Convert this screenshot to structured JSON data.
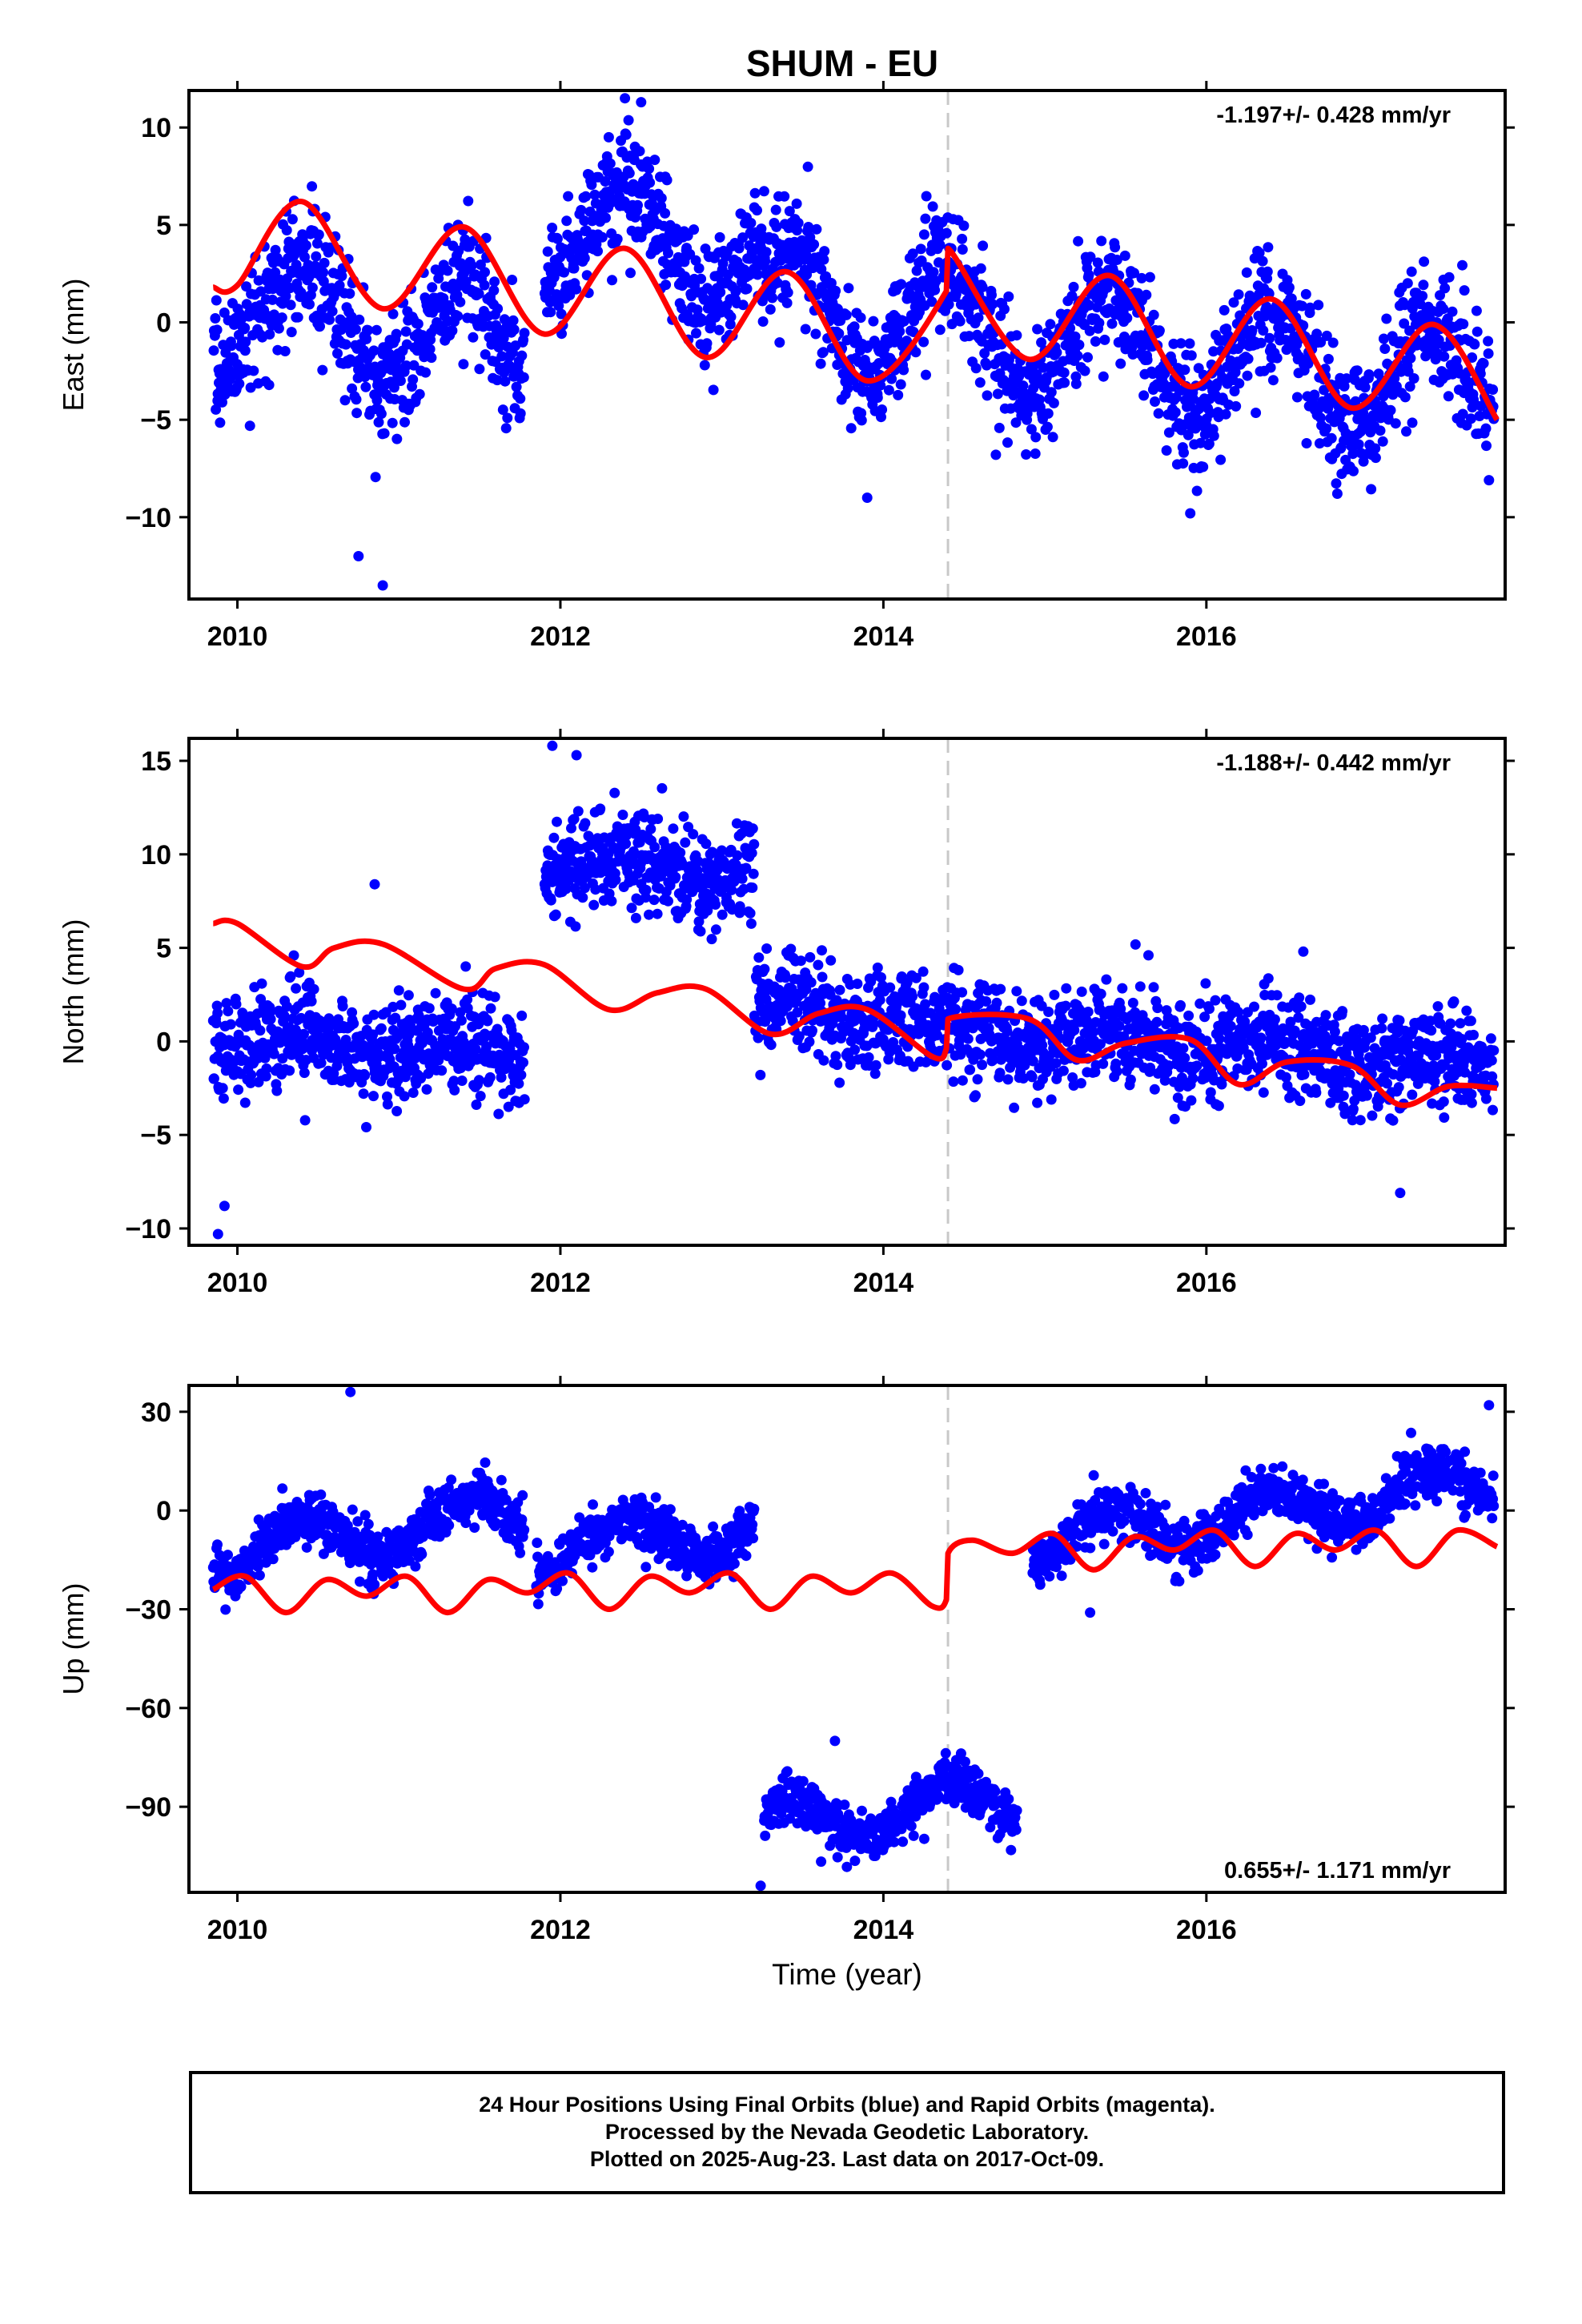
{
  "title": "SHUM - EU",
  "footer": {
    "line1": "24 Hour Positions Using Final Orbits (blue) and Rapid Orbits (magenta).",
    "line2": "Processed by the Nevada Geodetic Laboratory.",
    "line3": "Plotted on 2025-Aug-23. Last data on 2017-Oct-09."
  },
  "colors": {
    "data": "#0000ff",
    "model": "#ff0000",
    "offset_line": "#c8c8c8",
    "frame": "#000000"
  },
  "chart_data": [
    {
      "type": "scatter",
      "component": "east",
      "ylabel": "East (mm)",
      "xlabel": "",
      "xlim": [
        2009.7,
        2017.85
      ],
      "ylim": [
        -14.2,
        11.9
      ],
      "xticks": [
        2010,
        2012,
        2014,
        2016
      ],
      "yticks": [
        -10,
        -5,
        0,
        5,
        10
      ],
      "rate_label": "-1.197+/- 0.428 mm/yr",
      "rate_position": "top-right",
      "offset_epoch": 2014.4,
      "gaps": [
        [
          2011.78,
          2011.9
        ]
      ],
      "trend": {
        "slope": -0.85,
        "at_2014": 0
      },
      "segment_shifts": [
        [
          2009.85,
          2011.8,
          -3.0
        ],
        [
          2011.9,
          2013.25,
          3.0
        ],
        [
          2013.25,
          2014.4,
          0.5
        ],
        [
          2014.4,
          2017.8,
          0.0
        ]
      ],
      "annual_amp": 2.8,
      "noise_sd": 1.6,
      "n_points": 2400,
      "model_keypoints": [
        [
          2009.85,
          1.8
        ],
        [
          2010.0,
          1.9
        ],
        [
          2010.4,
          6.2
        ],
        [
          2010.9,
          0.7
        ],
        [
          2011.4,
          4.9
        ],
        [
          2011.9,
          -0.6
        ],
        [
          2012.4,
          3.8
        ],
        [
          2012.9,
          -1.8
        ],
        [
          2013.4,
          2.6
        ],
        [
          2013.9,
          -3.0
        ],
        [
          2014.39,
          1.6
        ],
        [
          2014.4,
          3.8
        ],
        [
          2014.9,
          -1.9
        ],
        [
          2015.4,
          2.4
        ],
        [
          2015.9,
          -3.3
        ],
        [
          2016.4,
          1.2
        ],
        [
          2016.9,
          -4.4
        ],
        [
          2017.4,
          -0.1
        ],
        [
          2017.8,
          -5.0
        ]
      ],
      "extreme_points": [
        [
          2010.75,
          -12.0
        ],
        [
          2010.9,
          -13.5
        ],
        [
          2012.4,
          11.5
        ],
        [
          2012.5,
          11.3
        ],
        [
          2013.9,
          -9.0
        ],
        [
          2015.9,
          -9.8
        ]
      ]
    },
    {
      "type": "scatter",
      "component": "north",
      "ylabel": "North (mm)",
      "xlabel": "",
      "xlim": [
        2009.7,
        2017.85
      ],
      "ylim": [
        -10.9,
        16.2
      ],
      "xticks": [
        2010,
        2012,
        2014,
        2016
      ],
      "yticks": [
        -10,
        -5,
        0,
        5,
        10,
        15
      ],
      "rate_label": "-1.188+/- 0.442 mm/yr",
      "rate_position": "top-right",
      "offset_epoch": 2014.4,
      "gaps": [
        [
          2011.78,
          2011.9
        ]
      ],
      "trend": {
        "slope": -0.55,
        "at_2014": 0
      },
      "segment_shifts": [
        [
          2009.85,
          2011.8,
          -2.0
        ],
        [
          2011.9,
          2013.2,
          8.5
        ],
        [
          2013.2,
          2014.4,
          1.2
        ],
        [
          2014.4,
          2017.8,
          0.8
        ]
      ],
      "annual_amp": 0.5,
      "noise_sd": 1.3,
      "n_points": 2400,
      "model_keypoints": [
        [
          2009.85,
          6.3
        ],
        [
          2010.0,
          6.3
        ],
        [
          2010.4,
          4.0
        ],
        [
          2010.6,
          5.0
        ],
        [
          2010.9,
          5.2
        ],
        [
          2011.4,
          2.8
        ],
        [
          2011.6,
          3.9
        ],
        [
          2011.9,
          4.1
        ],
        [
          2012.3,
          1.7
        ],
        [
          2012.6,
          2.6
        ],
        [
          2012.9,
          2.8
        ],
        [
          2013.3,
          0.4
        ],
        [
          2013.6,
          1.5
        ],
        [
          2013.9,
          1.7
        ],
        [
          2014.3,
          -0.8
        ],
        [
          2014.39,
          -0.4
        ],
        [
          2014.4,
          1.2
        ],
        [
          2014.9,
          1.2
        ],
        [
          2015.2,
          -1.0
        ],
        [
          2015.5,
          -0.1
        ],
        [
          2015.9,
          0.1
        ],
        [
          2016.2,
          -2.3
        ],
        [
          2016.5,
          -1.1
        ],
        [
          2016.9,
          -1.3
        ],
        [
          2017.2,
          -3.4
        ],
        [
          2017.5,
          -2.4
        ],
        [
          2017.8,
          -2.5
        ]
      ],
      "extreme_points": [
        [
          2009.88,
          -10.3
        ],
        [
          2009.92,
          -8.8
        ],
        [
          2010.85,
          8.4
        ],
        [
          2011.95,
          15.8
        ],
        [
          2012.1,
          15.3
        ],
        [
          2016.6,
          4.8
        ],
        [
          2017.2,
          -8.1
        ]
      ]
    },
    {
      "type": "scatter",
      "component": "up",
      "ylabel": "Up (mm)",
      "xlabel": "Time (year)",
      "xlim": [
        2009.7,
        2017.85
      ],
      "ylim": [
        -116,
        38
      ],
      "xticks": [
        2010,
        2012,
        2014,
        2016
      ],
      "yticks": [
        -90,
        -60,
        -30,
        0,
        30
      ],
      "rate_label": "0.655+/- 1.171 mm/yr",
      "rate_position": "bottom-right",
      "offset_epoch": 2014.4,
      "gaps": [
        [
          2011.78,
          2011.85
        ],
        [
          2013.2,
          2013.26
        ],
        [
          2014.83,
          2014.92
        ]
      ],
      "trend": {
        "slope": 6.0,
        "at_2014": 0
      },
      "segment_shifts": [
        [
          2009.85,
          2011.8,
          12.0
        ],
        [
          2011.85,
          2013.2,
          0.0
        ],
        [
          2013.26,
          2014.83,
          -92.0
        ],
        [
          2014.92,
          2017.8,
          -15.0
        ]
      ],
      "annual_amp": 7.0,
      "noise_sd": 4.0,
      "n_points": 2200,
      "model_keypoints": [
        [
          2009.85,
          -24
        ],
        [
          2010.05,
          -20
        ],
        [
          2010.3,
          -31
        ],
        [
          2010.55,
          -21
        ],
        [
          2010.8,
          -26
        ],
        [
          2011.05,
          -20
        ],
        [
          2011.3,
          -31
        ],
        [
          2011.55,
          -21
        ],
        [
          2011.8,
          -25
        ],
        [
          2012.05,
          -19
        ],
        [
          2012.3,
          -30
        ],
        [
          2012.55,
          -20
        ],
        [
          2012.8,
          -25
        ],
        [
          2013.05,
          -19
        ],
        [
          2013.3,
          -30
        ],
        [
          2013.55,
          -20
        ],
        [
          2013.8,
          -25
        ],
        [
          2014.05,
          -19
        ],
        [
          2014.3,
          -29
        ],
        [
          2014.39,
          -27
        ],
        [
          2014.4,
          -13
        ],
        [
          2014.55,
          -9
        ],
        [
          2014.8,
          -13
        ],
        [
          2015.05,
          -7
        ],
        [
          2015.3,
          -18
        ],
        [
          2015.55,
          -8
        ],
        [
          2015.8,
          -12
        ],
        [
          2016.05,
          -6
        ],
        [
          2016.3,
          -17
        ],
        [
          2016.55,
          -7
        ],
        [
          2016.8,
          -12
        ],
        [
          2017.05,
          -6
        ],
        [
          2017.3,
          -17
        ],
        [
          2017.55,
          -6
        ],
        [
          2017.8,
          -11
        ]
      ],
      "extreme_points": [
        [
          2010.7,
          36
        ],
        [
          2013.24,
          -114
        ],
        [
          2013.7,
          -70
        ],
        [
          2015.28,
          -31
        ],
        [
          2017.75,
          32
        ]
      ]
    }
  ]
}
